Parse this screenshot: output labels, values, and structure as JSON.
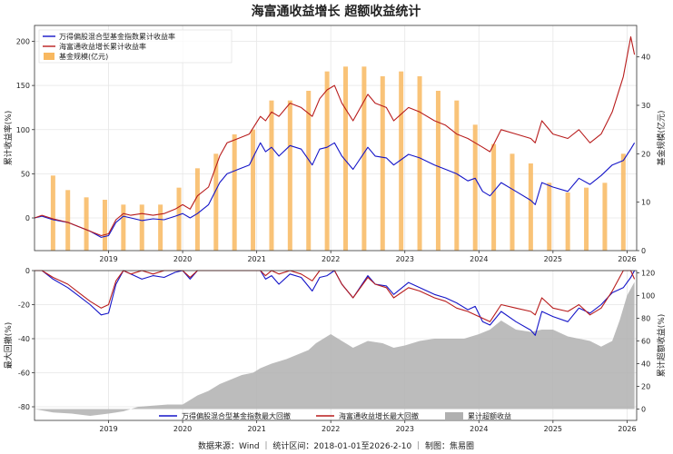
{
  "title": "海富通收益增长 超额收益统计",
  "footer": "数据来源：Wind ｜ 统计区间：2018-01-01至2026-2-10 ｜ 制图：焦易圈",
  "colors": {
    "index": "#1515c8",
    "fund": "#b81c1c",
    "scale": "#f8b860",
    "excess": "#b0b0b0"
  },
  "x_years": [
    "2019",
    "2020",
    "2021",
    "2022",
    "2023",
    "2024",
    "2025",
    "2026"
  ],
  "chart_data": [
    {
      "type": "line",
      "panel": "top",
      "ylabel_left": "累计收益率(%)",
      "ylabel_right": "基金规模(亿元)",
      "ylim_left": [
        -37,
        218
      ],
      "yticks_left": [
        0,
        50,
        100,
        150,
        200
      ],
      "ylim_right": [
        0,
        46.5
      ],
      "yticks_right": [
        0,
        10,
        20,
        30,
        40
      ],
      "xlim": [
        2018.0,
        2026.13
      ],
      "legend": {
        "position": "top-left",
        "entries": [
          "万得偏股混合型基金指数累计收益率",
          "海富通收益增长累计收益率",
          "基金规模(亿元)"
        ]
      },
      "series": [
        {
          "name": "万得偏股混合型基金指数累计收益率",
          "kind": "line",
          "x": [
            2018.0,
            2018.1,
            2018.25,
            2018.45,
            2018.6,
            2018.75,
            2018.9,
            2019.0,
            2019.1,
            2019.2,
            2019.3,
            2019.45,
            2019.6,
            2019.75,
            2019.9,
            2020.0,
            2020.1,
            2020.2,
            2020.35,
            2020.5,
            2020.6,
            2020.75,
            2020.9,
            2021.05,
            2021.12,
            2021.2,
            2021.3,
            2021.45,
            2021.6,
            2021.75,
            2021.85,
            2021.95,
            2022.05,
            2022.15,
            2022.3,
            2022.5,
            2022.6,
            2022.75,
            2022.85,
            2023.05,
            2023.2,
            2023.4,
            2023.55,
            2023.7,
            2023.85,
            2023.95,
            2024.05,
            2024.15,
            2024.3,
            2024.5,
            2024.7,
            2024.76,
            2024.85,
            2025.0,
            2025.2,
            2025.35,
            2025.5,
            2025.65,
            2025.8,
            2025.95,
            2026.05,
            2026.1
          ],
          "y": [
            0,
            2,
            -2,
            -5,
            -10,
            -15,
            -22,
            -20,
            -5,
            2,
            0,
            -3,
            -1,
            -2,
            2,
            5,
            0,
            5,
            15,
            40,
            50,
            55,
            60,
            85,
            75,
            80,
            70,
            82,
            78,
            60,
            78,
            80,
            85,
            70,
            55,
            80,
            70,
            68,
            60,
            72,
            68,
            60,
            55,
            50,
            42,
            45,
            30,
            25,
            40,
            30,
            20,
            15,
            40,
            35,
            30,
            45,
            38,
            48,
            60,
            65,
            78,
            85
          ]
        },
        {
          "name": "海富通收益增长累计收益率",
          "kind": "line",
          "x": [
            2018.0,
            2018.1,
            2018.25,
            2018.45,
            2018.6,
            2018.75,
            2018.9,
            2019.0,
            2019.1,
            2019.2,
            2019.3,
            2019.45,
            2019.6,
            2019.75,
            2019.9,
            2020.0,
            2020.1,
            2020.2,
            2020.35,
            2020.5,
            2020.6,
            2020.75,
            2020.9,
            2021.05,
            2021.12,
            2021.2,
            2021.3,
            2021.45,
            2021.6,
            2021.75,
            2021.85,
            2021.95,
            2022.05,
            2022.15,
            2022.3,
            2022.5,
            2022.6,
            2022.75,
            2022.85,
            2023.05,
            2023.2,
            2023.4,
            2023.55,
            2023.7,
            2023.85,
            2023.95,
            2024.05,
            2024.15,
            2024.3,
            2024.5,
            2024.7,
            2024.76,
            2024.85,
            2025.0,
            2025.2,
            2025.35,
            2025.5,
            2025.65,
            2025.8,
            2025.95,
            2026.05,
            2026.1
          ],
          "y": [
            0,
            3,
            -1,
            -5,
            -10,
            -15,
            -20,
            -18,
            -2,
            5,
            3,
            5,
            3,
            5,
            10,
            15,
            10,
            25,
            35,
            70,
            85,
            90,
            95,
            115,
            110,
            120,
            115,
            130,
            125,
            115,
            135,
            145,
            150,
            130,
            110,
            140,
            130,
            125,
            110,
            125,
            120,
            110,
            105,
            95,
            90,
            85,
            80,
            75,
            100,
            95,
            90,
            85,
            110,
            95,
            90,
            100,
            85,
            95,
            120,
            160,
            205,
            185
          ]
        },
        {
          "name": "基金规模(亿元)",
          "kind": "bar",
          "axis": "right",
          "x": [
            2018.25,
            2018.45,
            2018.7,
            2018.95,
            2019.2,
            2019.45,
            2019.7,
            2019.95,
            2020.2,
            2020.45,
            2020.7,
            2020.95,
            2021.2,
            2021.45,
            2021.7,
            2021.95,
            2022.2,
            2022.45,
            2022.7,
            2022.95,
            2023.2,
            2023.45,
            2023.7,
            2023.95,
            2024.2,
            2024.45,
            2024.7,
            2024.95,
            2025.2,
            2025.45,
            2025.7,
            2025.95
          ],
          "y": [
            15.5,
            12.5,
            11,
            10.5,
            9.5,
            9.5,
            9.5,
            13,
            17,
            20,
            24,
            25,
            31,
            31,
            33,
            37,
            38,
            38,
            36,
            37,
            36,
            33,
            31,
            26,
            22,
            20,
            18,
            14,
            12,
            13,
            14,
            20
          ]
        }
      ]
    },
    {
      "type": "area",
      "panel": "bottom",
      "ylabel_left": "最大回撤(%)",
      "ylabel_right": "累计超额收益(%)",
      "ylim_left": [
        -88,
        0
      ],
      "yticks_left": [
        -80,
        -60,
        -40,
        -20,
        0
      ],
      "ylim_right": [
        -10,
        122
      ],
      "yticks_right": [
        0,
        20,
        40,
        60,
        80,
        100,
        120
      ],
      "xlim": [
        2018.0,
        2026.13
      ],
      "legend": {
        "position": "bottom-center",
        "entries": [
          "万得偏股混合型基金指数最大回撤",
          "海富通收益增长最大回撤",
          "累计超额收益"
        ]
      },
      "series": [
        {
          "name": "万得偏股混合型基金指数最大回撤",
          "kind": "line",
          "x": [
            2018.0,
            2018.1,
            2018.25,
            2018.45,
            2018.6,
            2018.75,
            2018.9,
            2019.0,
            2019.1,
            2019.2,
            2019.3,
            2019.45,
            2019.6,
            2019.75,
            2019.9,
            2020.0,
            2020.1,
            2020.2,
            2020.35,
            2020.5,
            2020.6,
            2020.75,
            2020.9,
            2021.05,
            2021.12,
            2021.2,
            2021.3,
            2021.45,
            2021.6,
            2021.75,
            2021.85,
            2021.95,
            2022.05,
            2022.15,
            2022.3,
            2022.5,
            2022.6,
            2022.75,
            2022.85,
            2023.05,
            2023.2,
            2023.4,
            2023.55,
            2023.7,
            2023.85,
            2023.95,
            2024.05,
            2024.15,
            2024.3,
            2024.5,
            2024.7,
            2024.76,
            2024.85,
            2025.0,
            2025.2,
            2025.35,
            2025.5,
            2025.65,
            2025.8,
            2025.95,
            2026.05,
            2026.1
          ],
          "y": [
            0,
            0,
            -5,
            -10,
            -15,
            -20,
            -26,
            -25,
            -8,
            0,
            -2,
            -5,
            -3,
            -4,
            -1,
            0,
            -5,
            0,
            0,
            0,
            0,
            0,
            0,
            0,
            -5,
            -3,
            -8,
            -2,
            -4,
            -12,
            -4,
            -3,
            0,
            -8,
            -16,
            -3,
            -8,
            -9,
            -14,
            -7,
            -10,
            -14,
            -16,
            -19,
            -23,
            -21,
            -30,
            -32,
            -24,
            -30,
            -35,
            -38,
            -24,
            -27,
            -30,
            -22,
            -25,
            -20,
            -13,
            -10,
            -4,
            0
          ]
        },
        {
          "name": "海富通收益增长最大回撤",
          "kind": "line",
          "x": [
            2018.0,
            2018.1,
            2018.25,
            2018.45,
            2018.6,
            2018.75,
            2018.9,
            2019.0,
            2019.1,
            2019.2,
            2019.3,
            2019.45,
            2019.6,
            2019.75,
            2019.9,
            2020.0,
            2020.1,
            2020.2,
            2020.35,
            2020.5,
            2020.6,
            2020.75,
            2020.9,
            2021.05,
            2021.12,
            2021.2,
            2021.3,
            2021.45,
            2021.6,
            2021.75,
            2021.85,
            2021.95,
            2022.05,
            2022.15,
            2022.3,
            2022.5,
            2022.6,
            2022.75,
            2022.85,
            2023.05,
            2023.2,
            2023.4,
            2023.55,
            2023.7,
            2023.85,
            2023.95,
            2024.05,
            2024.15,
            2024.3,
            2024.5,
            2024.7,
            2024.76,
            2024.85,
            2025.0,
            2025.2,
            2025.35,
            2025.5,
            2025.65,
            2025.8,
            2025.95,
            2026.05,
            2026.1
          ],
          "y": [
            0,
            0,
            -4,
            -8,
            -13,
            -18,
            -22,
            -20,
            -6,
            0,
            -2,
            0,
            -2,
            0,
            0,
            0,
            -4,
            0,
            0,
            0,
            0,
            0,
            0,
            0,
            -3,
            0,
            -2,
            0,
            -2,
            -6,
            0,
            0,
            0,
            -8,
            -16,
            -4,
            -8,
            -10,
            -16,
            -10,
            -12,
            -16,
            -18,
            -22,
            -24,
            -26,
            -28,
            -30,
            -20,
            -22,
            -24,
            -26,
            -16,
            -22,
            -24,
            -20,
            -26,
            -22,
            -12,
            0,
            0,
            -5
          ]
        },
        {
          "name": "累计超额收益",
          "kind": "area",
          "axis": "right",
          "x": [
            2018.0,
            2018.25,
            2018.5,
            2018.75,
            2019.0,
            2019.2,
            2019.4,
            2019.6,
            2019.8,
            2020.0,
            2020.1,
            2020.2,
            2020.35,
            2020.5,
            2020.65,
            2020.8,
            2020.95,
            2021.05,
            2021.2,
            2021.4,
            2021.55,
            2021.7,
            2021.8,
            2021.9,
            2022.0,
            2022.15,
            2022.3,
            2022.5,
            2022.7,
            2022.85,
            2023.0,
            2023.2,
            2023.4,
            2023.6,
            2023.8,
            2024.0,
            2024.15,
            2024.3,
            2024.5,
            2024.7,
            2024.85,
            2025.0,
            2025.2,
            2025.35,
            2025.5,
            2025.65,
            2025.8,
            2025.9,
            2026.0,
            2026.1
          ],
          "y": [
            0,
            -3,
            -4,
            -6,
            -4,
            -2,
            2,
            3,
            4,
            4,
            8,
            12,
            16,
            22,
            26,
            30,
            32,
            36,
            40,
            44,
            48,
            52,
            58,
            62,
            66,
            60,
            54,
            60,
            58,
            54,
            56,
            60,
            62,
            62,
            62,
            66,
            70,
            78,
            70,
            68,
            70,
            70,
            64,
            62,
            60,
            55,
            60,
            78,
            100,
            112
          ]
        }
      ]
    }
  ]
}
